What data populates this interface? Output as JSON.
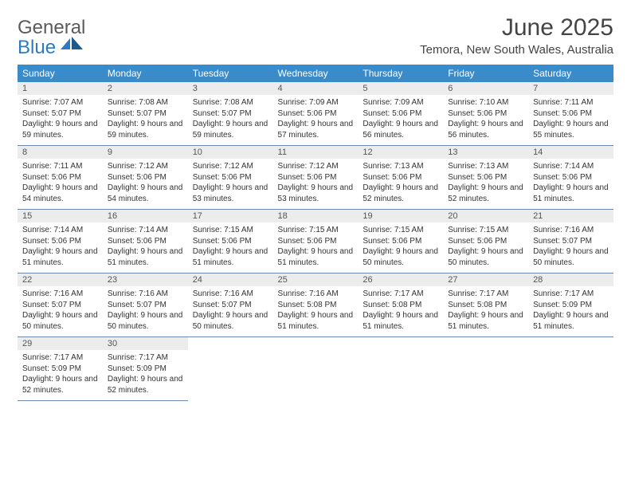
{
  "logo": {
    "line1": "General",
    "line2": "Blue"
  },
  "header": {
    "month": "June 2025",
    "location": "Temora, New South Wales, Australia"
  },
  "colors": {
    "header_bg": "#3a8bc9",
    "header_text": "#ffffff",
    "daynum_bg": "#ececec",
    "border": "#6a8aa8",
    "logo_gray": "#5b5b5b",
    "logo_blue": "#2e7ac0"
  },
  "daysOfWeek": [
    "Sunday",
    "Monday",
    "Tuesday",
    "Wednesday",
    "Thursday",
    "Friday",
    "Saturday"
  ],
  "weeks": [
    [
      {
        "n": "1",
        "sr": "7:07 AM",
        "ss": "5:07 PM",
        "dl": "9 hours and 59 minutes."
      },
      {
        "n": "2",
        "sr": "7:08 AM",
        "ss": "5:07 PM",
        "dl": "9 hours and 59 minutes."
      },
      {
        "n": "3",
        "sr": "7:08 AM",
        "ss": "5:07 PM",
        "dl": "9 hours and 59 minutes."
      },
      {
        "n": "4",
        "sr": "7:09 AM",
        "ss": "5:06 PM",
        "dl": "9 hours and 57 minutes."
      },
      {
        "n": "5",
        "sr": "7:09 AM",
        "ss": "5:06 PM",
        "dl": "9 hours and 56 minutes."
      },
      {
        "n": "6",
        "sr": "7:10 AM",
        "ss": "5:06 PM",
        "dl": "9 hours and 56 minutes."
      },
      {
        "n": "7",
        "sr": "7:11 AM",
        "ss": "5:06 PM",
        "dl": "9 hours and 55 minutes."
      }
    ],
    [
      {
        "n": "8",
        "sr": "7:11 AM",
        "ss": "5:06 PM",
        "dl": "9 hours and 54 minutes."
      },
      {
        "n": "9",
        "sr": "7:12 AM",
        "ss": "5:06 PM",
        "dl": "9 hours and 54 minutes."
      },
      {
        "n": "10",
        "sr": "7:12 AM",
        "ss": "5:06 PM",
        "dl": "9 hours and 53 minutes."
      },
      {
        "n": "11",
        "sr": "7:12 AM",
        "ss": "5:06 PM",
        "dl": "9 hours and 53 minutes."
      },
      {
        "n": "12",
        "sr": "7:13 AM",
        "ss": "5:06 PM",
        "dl": "9 hours and 52 minutes."
      },
      {
        "n": "13",
        "sr": "7:13 AM",
        "ss": "5:06 PM",
        "dl": "9 hours and 52 minutes."
      },
      {
        "n": "14",
        "sr": "7:14 AM",
        "ss": "5:06 PM",
        "dl": "9 hours and 51 minutes."
      }
    ],
    [
      {
        "n": "15",
        "sr": "7:14 AM",
        "ss": "5:06 PM",
        "dl": "9 hours and 51 minutes."
      },
      {
        "n": "16",
        "sr": "7:14 AM",
        "ss": "5:06 PM",
        "dl": "9 hours and 51 minutes."
      },
      {
        "n": "17",
        "sr": "7:15 AM",
        "ss": "5:06 PM",
        "dl": "9 hours and 51 minutes."
      },
      {
        "n": "18",
        "sr": "7:15 AM",
        "ss": "5:06 PM",
        "dl": "9 hours and 51 minutes."
      },
      {
        "n": "19",
        "sr": "7:15 AM",
        "ss": "5:06 PM",
        "dl": "9 hours and 50 minutes."
      },
      {
        "n": "20",
        "sr": "7:15 AM",
        "ss": "5:06 PM",
        "dl": "9 hours and 50 minutes."
      },
      {
        "n": "21",
        "sr": "7:16 AM",
        "ss": "5:07 PM",
        "dl": "9 hours and 50 minutes."
      }
    ],
    [
      {
        "n": "22",
        "sr": "7:16 AM",
        "ss": "5:07 PM",
        "dl": "9 hours and 50 minutes."
      },
      {
        "n": "23",
        "sr": "7:16 AM",
        "ss": "5:07 PM",
        "dl": "9 hours and 50 minutes."
      },
      {
        "n": "24",
        "sr": "7:16 AM",
        "ss": "5:07 PM",
        "dl": "9 hours and 50 minutes."
      },
      {
        "n": "25",
        "sr": "7:16 AM",
        "ss": "5:08 PM",
        "dl": "9 hours and 51 minutes."
      },
      {
        "n": "26",
        "sr": "7:17 AM",
        "ss": "5:08 PM",
        "dl": "9 hours and 51 minutes."
      },
      {
        "n": "27",
        "sr": "7:17 AM",
        "ss": "5:08 PM",
        "dl": "9 hours and 51 minutes."
      },
      {
        "n": "28",
        "sr": "7:17 AM",
        "ss": "5:09 PM",
        "dl": "9 hours and 51 minutes."
      }
    ],
    [
      {
        "n": "29",
        "sr": "7:17 AM",
        "ss": "5:09 PM",
        "dl": "9 hours and 52 minutes."
      },
      {
        "n": "30",
        "sr": "7:17 AM",
        "ss": "5:09 PM",
        "dl": "9 hours and 52 minutes."
      },
      null,
      null,
      null,
      null,
      null
    ]
  ],
  "labels": {
    "sunrise": "Sunrise:",
    "sunset": "Sunset:",
    "daylight": "Daylight:"
  }
}
